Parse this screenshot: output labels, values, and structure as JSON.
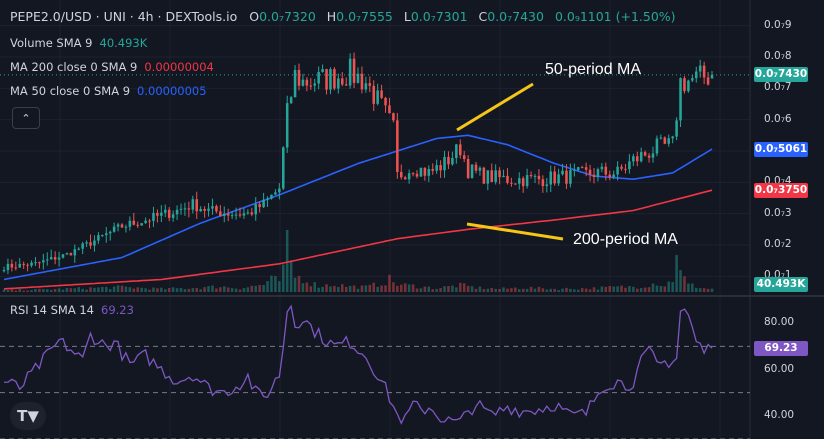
{
  "legend": {
    "pair": "PEPE2.0/USD · UNI · 4h · DEXTools.io",
    "o_label": "O",
    "o_value": "0.0₇7320",
    "h_label": "H",
    "h_value": "0.0₇7555",
    "l_label": "L",
    "l_value": "0.0₇7301",
    "c_label": "C",
    "c_value": "0.0₇7430",
    "change": "0.0₉1101 (+1.50%)",
    "volume_label": "Volume SMA 9",
    "volume_value": "40.493K",
    "ma200_label": "MA 200 close 0 SMA 9",
    "ma200_value": "0.00000004",
    "ma50_label": "MA 50 close 0 SMA 9",
    "ma50_value": "0.00000005",
    "rsi_label": "RSI 14 SMA 14",
    "rsi_value": "69.23",
    "collapse_icon": "chevron-up-icon"
  },
  "annotations": {
    "ma50": "50-period MA",
    "ma200": "200-period MA"
  },
  "price_axis": {
    "ticks": [
      {
        "label": "0.0₇9",
        "value": 0.9
      },
      {
        "label": "0.0₇8",
        "value": 0.8
      },
      {
        "label": "0.0₇7",
        "value": 0.7
      },
      {
        "label": "0.0₇6",
        "value": 0.6
      },
      {
        "label": "0.0₇4",
        "value": 0.4
      },
      {
        "label": "0.0₇3",
        "value": 0.3
      },
      {
        "label": "0.0₇2",
        "value": 0.2
      },
      {
        "label": "0.0₇1",
        "value": 0.1
      }
    ],
    "tags": [
      {
        "label": "0.0₇7430",
        "value": 0.743,
        "color": "#26a69a"
      },
      {
        "label": "0.0₇5061",
        "value": 0.5061,
        "color": "#2962ff"
      },
      {
        "label": "0.0₇3750",
        "value": 0.375,
        "color": "#f23645"
      }
    ],
    "volume_tag": {
      "label": "40.493K",
      "color": "#26a69a"
    }
  },
  "rsi_axis": {
    "ticks": [
      {
        "label": "80.00",
        "value": 80
      },
      {
        "label": "60.00",
        "value": 60
      },
      {
        "label": "40.00",
        "value": 40
      }
    ],
    "tag": {
      "label": "69.23",
      "value": 69.23,
      "color": "#7e57c2"
    },
    "bands": [
      70,
      50,
      30
    ]
  },
  "colors": {
    "up": "#26a69a",
    "down": "#ef5350",
    "ma50": "#2962ff",
    "ma200": "#f23645",
    "rsi": "#7e57c2",
    "annotation_arrow": "#f5c518",
    "grid": "#1e2230",
    "band": "#787b86"
  },
  "chart_data": [
    {
      "type": "candlestick",
      "title": "PEPE2.0/USD · UNI · 4h · DEXTools.io",
      "y_unit": "×1e-7 USD",
      "ylim": [
        0.05,
        0.95
      ],
      "grid": true,
      "price_path": [
        [
          0,
          0.13
        ],
        [
          8,
          0.14
        ],
        [
          16,
          0.17
        ],
        [
          24,
          0.22
        ],
        [
          30,
          0.26
        ],
        [
          36,
          0.28
        ],
        [
          44,
          0.31
        ],
        [
          48,
          0.33
        ],
        [
          52,
          0.31
        ],
        [
          58,
          0.3
        ],
        [
          62,
          0.3
        ],
        [
          66,
          0.33
        ],
        [
          70,
          0.38
        ],
        [
          72,
          0.62
        ],
        [
          74,
          0.74
        ],
        [
          76,
          0.72
        ],
        [
          82,
          0.73
        ],
        [
          88,
          0.75
        ],
        [
          92,
          0.72
        ],
        [
          96,
          0.64
        ],
        [
          99,
          0.57
        ],
        [
          100,
          0.42
        ],
        [
          104,
          0.45
        ],
        [
          108,
          0.43
        ],
        [
          112,
          0.46
        ],
        [
          116,
          0.51
        ],
        [
          118,
          0.44
        ],
        [
          122,
          0.42
        ],
        [
          128,
          0.41
        ],
        [
          136,
          0.41
        ],
        [
          144,
          0.42
        ],
        [
          150,
          0.43
        ],
        [
          156,
          0.43
        ],
        [
          160,
          0.47
        ],
        [
          166,
          0.51
        ],
        [
          170,
          0.52
        ],
        [
          172,
          0.72
        ],
        [
          176,
          0.73
        ],
        [
          180,
          0.743
        ]
      ],
      "n_candles": 181,
      "last": {
        "open": 0.732,
        "high": 0.7555,
        "low": 0.7301,
        "close": 0.743
      },
      "ma50": [
        [
          0,
          0.09
        ],
        [
          30,
          0.16
        ],
        [
          50,
          0.27
        ],
        [
          70,
          0.36
        ],
        [
          90,
          0.46
        ],
        [
          110,
          0.54
        ],
        [
          118,
          0.55
        ],
        [
          128,
          0.52
        ],
        [
          140,
          0.46
        ],
        [
          150,
          0.42
        ],
        [
          160,
          0.41
        ],
        [
          170,
          0.43
        ],
        [
          180,
          0.5061
        ]
      ],
      "ma200": [
        [
          0,
          0.06
        ],
        [
          40,
          0.09
        ],
        [
          70,
          0.14
        ],
        [
          100,
          0.22
        ],
        [
          118,
          0.25
        ],
        [
          140,
          0.28
        ],
        [
          160,
          0.31
        ],
        [
          180,
          0.375
        ]
      ],
      "volume": {
        "max": 1,
        "bars": [
          [
            0,
            0.03
          ],
          [
            10,
            0.04
          ],
          [
            20,
            0.06
          ],
          [
            30,
            0.08
          ],
          [
            40,
            0.05
          ],
          [
            50,
            0.07
          ],
          [
            55,
            0.09
          ],
          [
            60,
            0.06
          ],
          [
            66,
            0.12
          ],
          [
            68,
            0.2
          ],
          [
            70,
            0.18
          ],
          [
            71,
            0.35
          ],
          [
            72,
            1.0
          ],
          [
            73,
            0.45
          ],
          [
            74,
            0.25
          ],
          [
            76,
            0.22
          ],
          [
            78,
            0.15
          ],
          [
            80,
            0.1
          ],
          [
            84,
            0.12
          ],
          [
            88,
            0.09
          ],
          [
            92,
            0.08
          ],
          [
            96,
            0.14
          ],
          [
            98,
            0.2
          ],
          [
            100,
            0.12
          ],
          [
            104,
            0.1
          ],
          [
            110,
            0.06
          ],
          [
            116,
            0.11
          ],
          [
            120,
            0.07
          ],
          [
            126,
            0.05
          ],
          [
            132,
            0.07
          ],
          [
            140,
            0.05
          ],
          [
            150,
            0.06
          ],
          [
            156,
            0.08
          ],
          [
            162,
            0.09
          ],
          [
            166,
            0.15
          ],
          [
            168,
            0.1
          ],
          [
            170,
            0.2
          ],
          [
            171,
            0.75
          ],
          [
            172,
            0.3
          ],
          [
            174,
            0.12
          ],
          [
            178,
            0.06
          ],
          [
            180,
            0.05
          ]
        ],
        "sma9": "40.493K"
      }
    },
    {
      "type": "line",
      "title": "RSI 14 SMA 14",
      "ylim": [
        30,
        90
      ],
      "bands": [
        70,
        50,
        30
      ],
      "x": [
        0,
        4,
        8,
        12,
        14,
        16,
        20,
        22,
        26,
        28,
        32,
        36,
        40,
        44,
        48,
        52,
        56,
        60,
        62,
        64,
        66,
        68,
        70,
        71,
        72,
        73,
        74,
        76,
        80,
        84,
        88,
        92,
        96,
        98,
        100,
        102,
        104,
        106,
        108,
        112,
        116,
        118,
        120,
        124,
        128,
        132,
        136,
        140,
        144,
        148,
        150,
        152,
        156,
        158,
        160,
        162,
        164,
        166,
        168,
        170,
        171,
        172,
        173,
        174,
        176,
        178,
        180
      ],
      "values": [
        55,
        52,
        60,
        68,
        72,
        70,
        64,
        75,
        70,
        72,
        62,
        66,
        60,
        55,
        58,
        52,
        50,
        54,
        57,
        50,
        48,
        52,
        58,
        70,
        86,
        88,
        80,
        82,
        75,
        70,
        72,
        66,
        55,
        48,
        40,
        38,
        45,
        42,
        44,
        38,
        37,
        42,
        45,
        40,
        44,
        42,
        43,
        45,
        40,
        41,
        47,
        53,
        55,
        53,
        55,
        63,
        68,
        62,
        63,
        64,
        65,
        85,
        86,
        83,
        72,
        68,
        69.23
      ]
    }
  ]
}
